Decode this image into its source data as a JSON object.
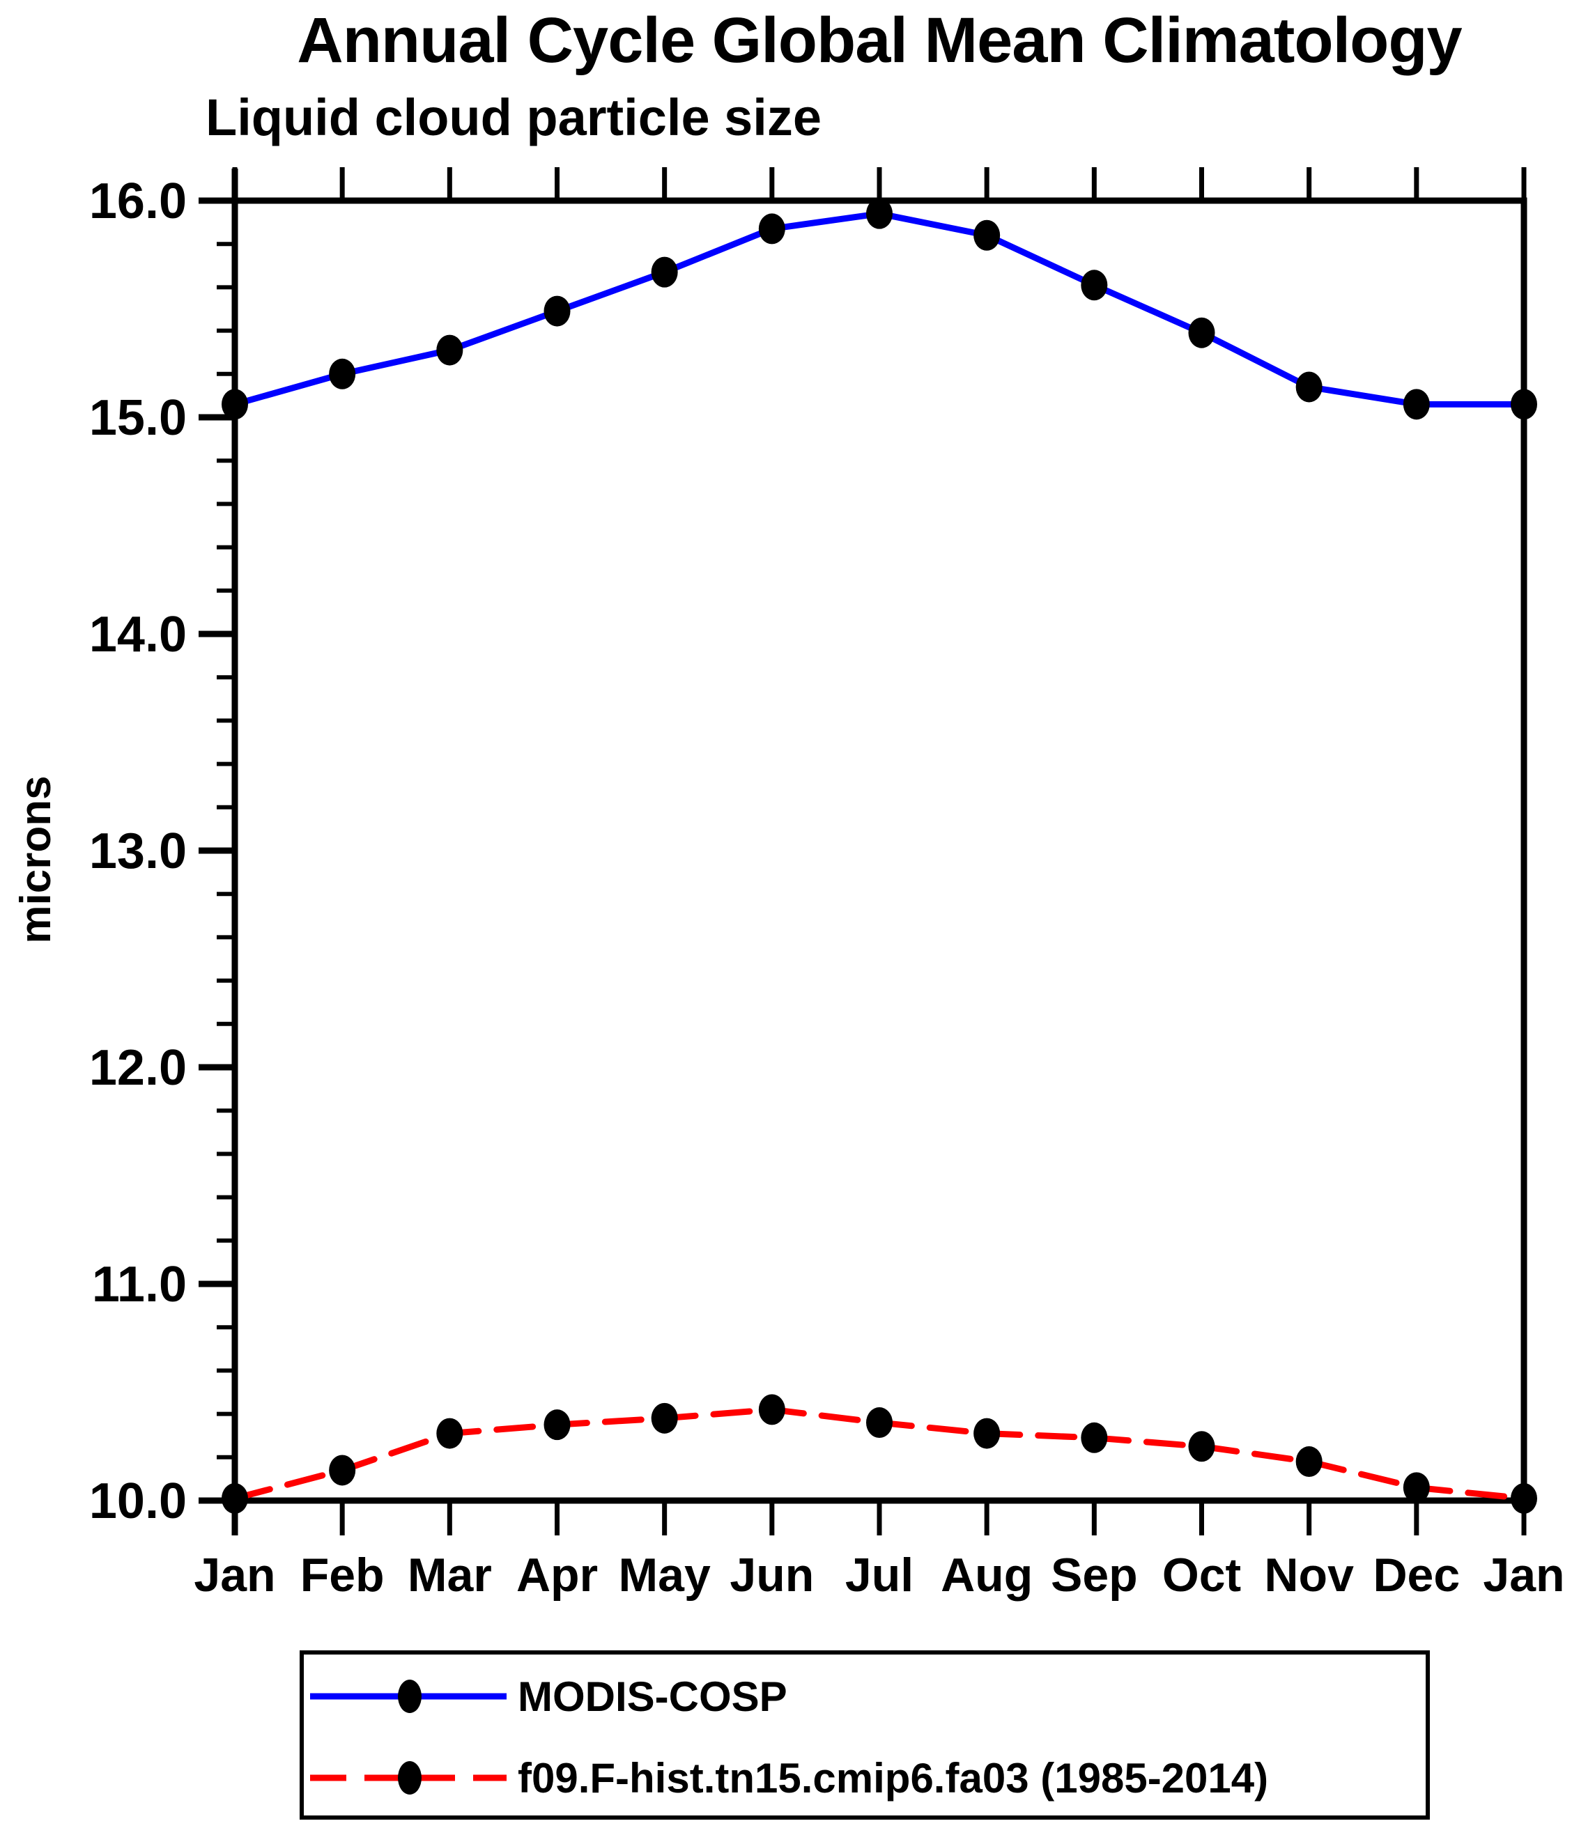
{
  "page": {
    "title": "Annual Cycle Global Mean Climatology",
    "subtitle": "Liquid cloud particle size"
  },
  "chart_data": {
    "type": "line",
    "title": "Annual Cycle Global Mean Climatology",
    "subtitle": "Liquid cloud particle size",
    "ylabel": "microns",
    "xlabel": "",
    "x_categories": [
      "Jan",
      "Feb",
      "Mar",
      "Apr",
      "May",
      "Jun",
      "Jul",
      "Aug",
      "Sep",
      "Oct",
      "Nov",
      "Dec",
      "Jan"
    ],
    "ylim": [
      10.0,
      16.0
    ],
    "ytick_major": [
      10.0,
      11.0,
      12.0,
      13.0,
      14.0,
      15.0,
      16.0
    ],
    "ytick_labels": [
      "10.0",
      "11.0",
      "12.0",
      "13.0",
      "14.0",
      "15.0",
      "16.0"
    ],
    "ytick_minor_step": 0.2,
    "grid": "off",
    "legend_position": "bottom",
    "axis_color": "#000000",
    "marker_color": "#000000",
    "series": [
      {
        "name": "MODIS-COSP",
        "color": "#0000ff",
        "style": "solid",
        "marker": "filled-circle",
        "values": [
          15.06,
          15.2,
          15.31,
          15.49,
          15.67,
          15.87,
          15.94,
          15.84,
          15.61,
          15.39,
          15.14,
          15.06,
          15.06
        ]
      },
      {
        "name": "f09.F-hist.tn15.cmip6.fa03 (1985-2014)",
        "color": "#ff0000",
        "style": "dashed",
        "marker": "filled-circle",
        "values": [
          10.01,
          10.14,
          10.31,
          10.35,
          10.38,
          10.42,
          10.36,
          10.31,
          10.29,
          10.25,
          10.18,
          10.06,
          10.01
        ]
      }
    ]
  }
}
